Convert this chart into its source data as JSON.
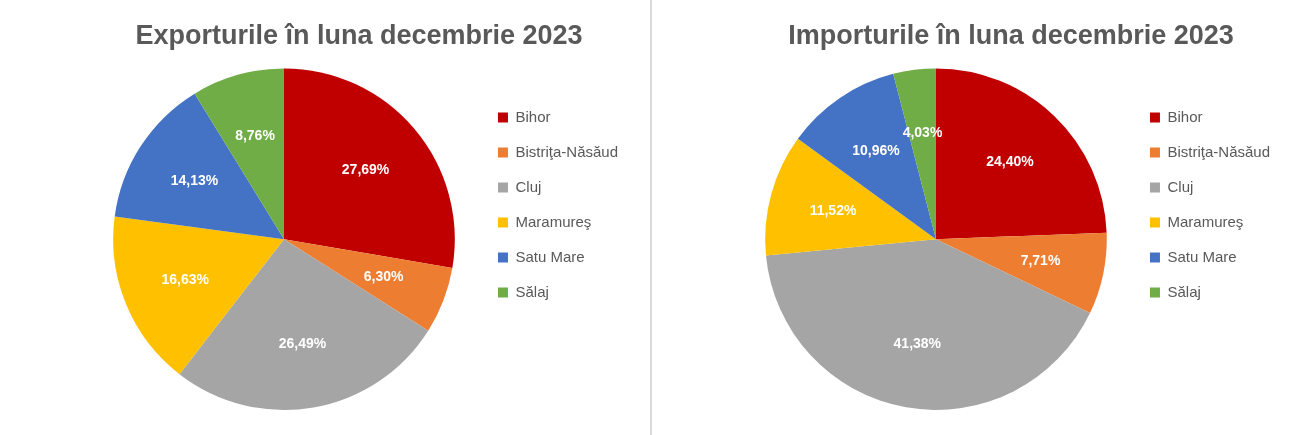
{
  "chart_data": [
    {
      "type": "pie",
      "title": "Exporturile în luna decembrie 2023",
      "categories": [
        "Bihor",
        "Bistriţa-Năsăud",
        "Cluj",
        "Maramureş",
        "Satu Mare",
        "Sălaj"
      ],
      "values": [
        27.69,
        6.3,
        26.49,
        16.63,
        14.13,
        8.76
      ],
      "value_labels": [
        "27,69%",
        "6,30%",
        "26,49%",
        "16,63%",
        "14,13%",
        "8,76%"
      ],
      "colors": [
        "#c00000",
        "#ed7d31",
        "#a5a5a5",
        "#ffc000",
        "#4472c4",
        "#70ad47"
      ],
      "legend": "right"
    },
    {
      "type": "pie",
      "title": "Importurile în luna decembrie 2023",
      "categories": [
        "Bihor",
        "Bistriţa-Năsăud",
        "Cluj",
        "Maramureş",
        "Satu Mare",
        "Sălaj"
      ],
      "values": [
        24.4,
        7.71,
        41.38,
        11.52,
        10.96,
        4.03
      ],
      "value_labels": [
        "24,40%",
        "7,71%",
        "41,38%",
        "11,52%",
        "10,96%",
        "4,03%"
      ],
      "colors": [
        "#c00000",
        "#ed7d31",
        "#a5a5a5",
        "#ffc000",
        "#4472c4",
        "#70ad47"
      ],
      "legend": "right"
    }
  ]
}
